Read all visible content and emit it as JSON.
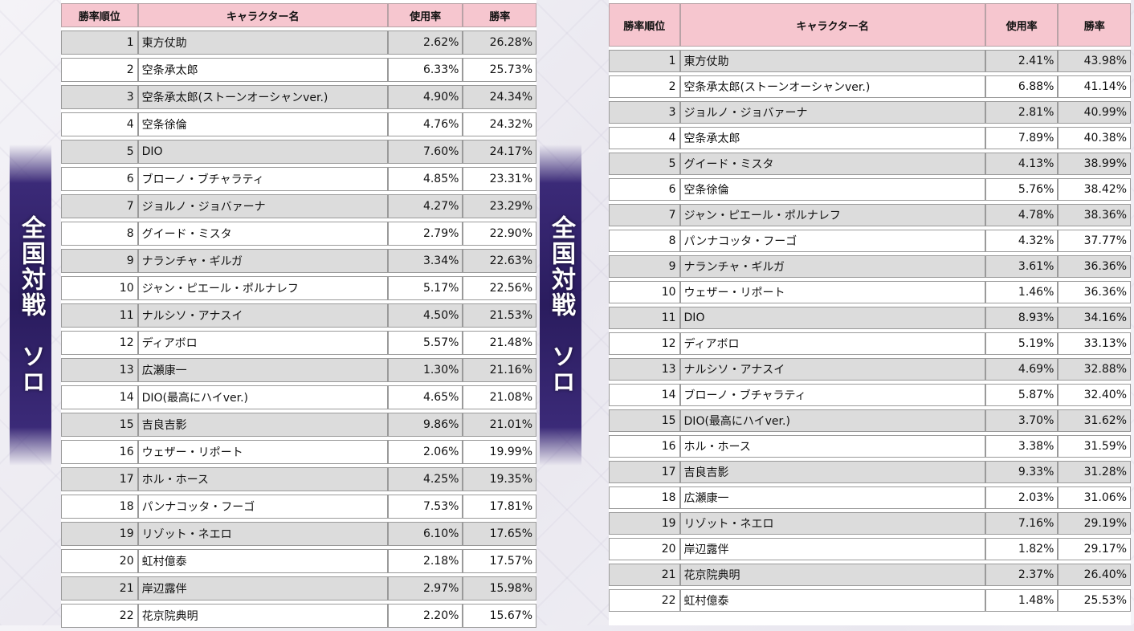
{
  "left_banner": "全国対戦　ソロ",
  "right_banner": "全国対戦　ソロ",
  "headers": {
    "rank": "勝率順位",
    "name": "キャラクター名",
    "usage": "使用率",
    "winrate": "勝率"
  },
  "left_table": [
    {
      "rank": "1",
      "name": "東方仗助",
      "usage": "2.62%",
      "winrate": "26.28%"
    },
    {
      "rank": "2",
      "name": "空条承太郎",
      "usage": "6.33%",
      "winrate": "25.73%"
    },
    {
      "rank": "3",
      "name": "空条承太郎(ストーンオーシャンver.)",
      "usage": "4.90%",
      "winrate": "24.34%"
    },
    {
      "rank": "4",
      "name": "空条徐倫",
      "usage": "4.76%",
      "winrate": "24.32%"
    },
    {
      "rank": "5",
      "name": "DIO",
      "usage": "7.60%",
      "winrate": "24.17%"
    },
    {
      "rank": "6",
      "name": "ブローノ・ブチャラティ",
      "usage": "4.85%",
      "winrate": "23.31%"
    },
    {
      "rank": "7",
      "name": "ジョルノ・ジョバァーナ",
      "usage": "4.27%",
      "winrate": "23.29%"
    },
    {
      "rank": "8",
      "name": "グイード・ミスタ",
      "usage": "2.79%",
      "winrate": "22.90%"
    },
    {
      "rank": "9",
      "name": "ナランチャ・ギルガ",
      "usage": "3.34%",
      "winrate": "22.63%"
    },
    {
      "rank": "10",
      "name": "ジャン・ピエール・ポルナレフ",
      "usage": "5.17%",
      "winrate": "22.56%"
    },
    {
      "rank": "11",
      "name": "ナルシソ・アナスイ",
      "usage": "4.50%",
      "winrate": "21.53%"
    },
    {
      "rank": "12",
      "name": "ディアボロ",
      "usage": "5.57%",
      "winrate": "21.48%"
    },
    {
      "rank": "13",
      "name": "広瀬康一",
      "usage": "1.30%",
      "winrate": "21.16%"
    },
    {
      "rank": "14",
      "name": "DIO(最高にハイver.)",
      "usage": "4.65%",
      "winrate": "21.08%"
    },
    {
      "rank": "15",
      "name": "吉良吉影",
      "usage": "9.86%",
      "winrate": "21.01%"
    },
    {
      "rank": "16",
      "name": "ウェザー・リポート",
      "usage": "2.06%",
      "winrate": "19.99%"
    },
    {
      "rank": "17",
      "name": "ホル・ホース",
      "usage": "4.25%",
      "winrate": "19.35%"
    },
    {
      "rank": "18",
      "name": "パンナコッタ・フーゴ",
      "usage": "7.53%",
      "winrate": "17.81%"
    },
    {
      "rank": "19",
      "name": "リゾット・ネエロ",
      "usage": "6.10%",
      "winrate": "17.65%"
    },
    {
      "rank": "20",
      "name": "虹村億泰",
      "usage": "2.18%",
      "winrate": "17.57%"
    },
    {
      "rank": "21",
      "name": "岸辺露伴",
      "usage": "2.97%",
      "winrate": "15.98%"
    },
    {
      "rank": "22",
      "name": "花京院典明",
      "usage": "2.20%",
      "winrate": "15.67%"
    }
  ],
  "right_table": [
    {
      "rank": "1",
      "name": "東方仗助",
      "usage": "2.41%",
      "winrate": "43.98%"
    },
    {
      "rank": "2",
      "name": "空条承太郎(ストーンオーシャンver.)",
      "usage": "6.88%",
      "winrate": "41.14%"
    },
    {
      "rank": "3",
      "name": "ジョルノ・ジョバァーナ",
      "usage": "2.81%",
      "winrate": "40.99%"
    },
    {
      "rank": "4",
      "name": "空条承太郎",
      "usage": "7.89%",
      "winrate": "40.38%"
    },
    {
      "rank": "5",
      "name": "グイード・ミスタ",
      "usage": "4.13%",
      "winrate": "38.99%"
    },
    {
      "rank": "6",
      "name": "空条徐倫",
      "usage": "5.76%",
      "winrate": "38.42%"
    },
    {
      "rank": "7",
      "name": "ジャン・ピエール・ポルナレフ",
      "usage": "4.78%",
      "winrate": "38.36%"
    },
    {
      "rank": "8",
      "name": "パンナコッタ・フーゴ",
      "usage": "4.32%",
      "winrate": "37.77%"
    },
    {
      "rank": "9",
      "name": "ナランチャ・ギルガ",
      "usage": "3.61%",
      "winrate": "36.36%"
    },
    {
      "rank": "10",
      "name": "ウェザー・リポート",
      "usage": "1.46%",
      "winrate": "36.36%"
    },
    {
      "rank": "11",
      "name": "DIO",
      "usage": "8.93%",
      "winrate": "34.16%"
    },
    {
      "rank": "12",
      "name": "ディアボロ",
      "usage": "5.19%",
      "winrate": "33.13%"
    },
    {
      "rank": "13",
      "name": "ナルシソ・アナスイ",
      "usage": "4.69%",
      "winrate": "32.88%"
    },
    {
      "rank": "14",
      "name": "ブローノ・ブチャラティ",
      "usage": "5.87%",
      "winrate": "32.40%"
    },
    {
      "rank": "15",
      "name": "DIO(最高にハイver.)",
      "usage": "3.70%",
      "winrate": "31.62%"
    },
    {
      "rank": "16",
      "name": "ホル・ホース",
      "usage": "3.38%",
      "winrate": "31.59%"
    },
    {
      "rank": "17",
      "name": "吉良吉影",
      "usage": "9.33%",
      "winrate": "31.28%"
    },
    {
      "rank": "18",
      "name": "広瀬康一",
      "usage": "2.03%",
      "winrate": "31.06%"
    },
    {
      "rank": "19",
      "name": "リゾット・ネエロ",
      "usage": "7.16%",
      "winrate": "29.19%"
    },
    {
      "rank": "20",
      "name": "岸辺露伴",
      "usage": "1.82%",
      "winrate": "29.17%"
    },
    {
      "rank": "21",
      "name": "花京院典明",
      "usage": "2.37%",
      "winrate": "26.40%"
    },
    {
      "rank": "22",
      "name": "虹村億泰",
      "usage": "1.48%",
      "winrate": "25.53%"
    }
  ]
}
